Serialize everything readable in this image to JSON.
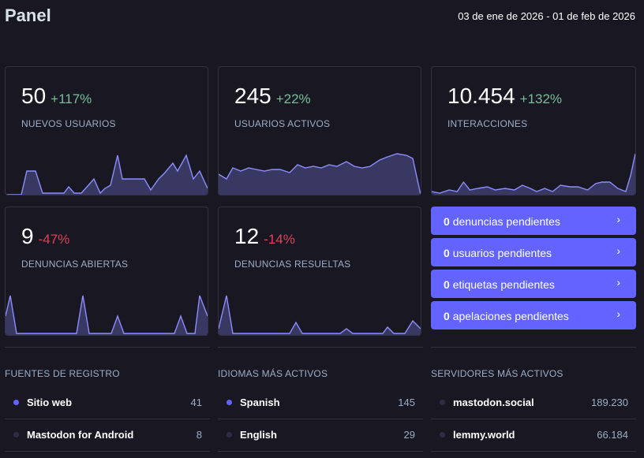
{
  "header": {
    "title": "Panel",
    "date_range": "03 de ene de 2026 - 01 de feb de 2026"
  },
  "metrics": [
    {
      "value": "50",
      "change": "+117%",
      "label": "NUEVOS USUARIOS",
      "trend": "positive"
    },
    {
      "value": "245",
      "change": "+22%",
      "label": "USUARIOS ACTIVOS",
      "trend": "positive"
    },
    {
      "value": "10.454",
      "change": "+132%",
      "label": "INTERACCIONES",
      "trend": "positive"
    },
    {
      "value": "9",
      "change": "-47%",
      "label": "DENUNCIAS ABIERTAS",
      "trend": "negative"
    },
    {
      "value": "12",
      "change": "-14%",
      "label": "DENUNCIAS RESUELTAS",
      "trend": "negative"
    }
  ],
  "pending": [
    {
      "count": "0",
      "label": "denuncias pendientes"
    },
    {
      "count": "0",
      "label": "usuarios pendientes"
    },
    {
      "count": "0",
      "label": "etiquetas pendientes"
    },
    {
      "count": "0",
      "label": "apelaciones pendientes"
    }
  ],
  "sections": [
    {
      "title": "FUENTES DE REGISTRO",
      "rows": [
        {
          "name": "Sitio web",
          "value": "41"
        },
        {
          "name": "Mastodon for Android",
          "value": "8"
        }
      ]
    },
    {
      "title": "IDIOMAS MÁS ACTIVOS",
      "rows": [
        {
          "name": "Spanish",
          "value": "145"
        },
        {
          "name": "English",
          "value": "29"
        }
      ]
    },
    {
      "title": "SERVIDORES MÁS ACTIVOS",
      "rows": [
        {
          "name": "mastodon.social",
          "value": "189.230"
        },
        {
          "name": "lemmy.world",
          "value": "66.184"
        }
      ]
    }
  ],
  "colors": {
    "background": "#191822",
    "accent": "#6364ff",
    "positive": "#79bd9a",
    "negative": "#df405a",
    "muted": "#9baec8"
  }
}
